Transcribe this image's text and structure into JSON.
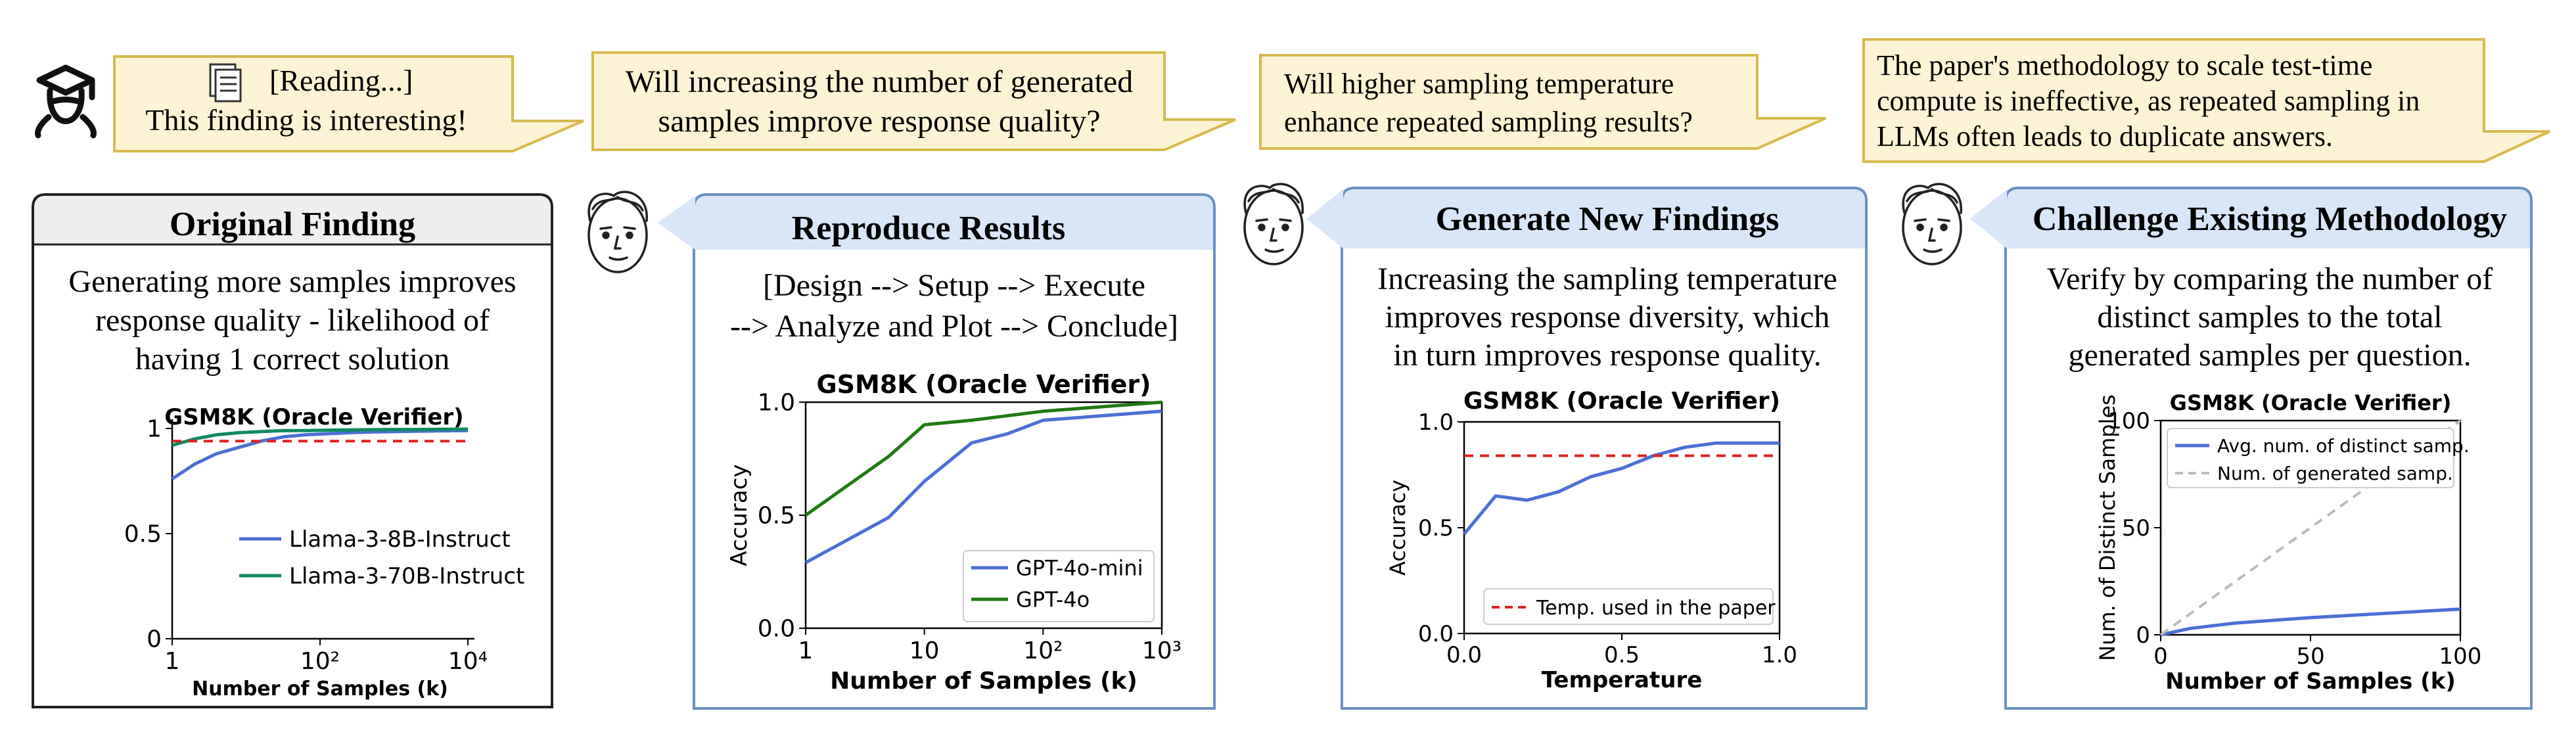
{
  "bubbles": [
    {
      "icon_name": "document-icon",
      "line1": "[Reading...]",
      "line2": "This finding is interesting!"
    },
    {
      "line1": "Will increasing the number of generated",
      "line2": "samples improve response quality?"
    },
    {
      "line1": "Will higher sampling temperature",
      "line2": "enhance repeated sampling results?"
    },
    {
      "line1": "The paper's methodology to scale test-time",
      "line2": "compute is ineffective, as repeated sampling in",
      "line3": "LLMs often leads to duplicate answers."
    }
  ],
  "icons": {
    "user": "graduation-cap-user-icon",
    "agent": "sketched-face-icon"
  },
  "panels": [
    {
      "title": "Original Finding",
      "text": [
        "Generating more samples improves",
        "response quality - likelihood of",
        "having 1 correct solution"
      ]
    },
    {
      "title": "Reproduce Results",
      "text": [
        "[Design --> Setup --> Execute",
        "--> Analyze and Plot --> Conclude]"
      ]
    },
    {
      "title": "Generate New Findings",
      "text": [
        "Increasing the sampling temperature",
        "improves response diversity, which",
        "in turn improves response quality."
      ]
    },
    {
      "title": "Challenge Existing Methodology",
      "text": [
        "Verify by comparing the number of",
        "distinct samples to the total",
        "generated samples per question."
      ]
    }
  ],
  "colors": {
    "bubble_fill": "#fbf3d3",
    "bubble_border": "#d7b94e",
    "panel_border_gray": "#222222",
    "panel_header_gray": "#eeeeee",
    "panel_border_blue": "#6a8fc4",
    "panel_header_blue": "#d9e6f8",
    "blue": "#4a6fd6",
    "green": "#108a5e",
    "dark_green": "#1f7a12",
    "red": "#e02020",
    "gray_dash": "#bbbbbb"
  },
  "chart_data": [
    {
      "type": "line",
      "title": "GSM8K (Oracle Verifier)",
      "xlabel": "Number of Samples (k)",
      "ylabel": "",
      "xscale": "log",
      "xlim": [
        1,
        10000
      ],
      "ylim": [
        0,
        1
      ],
      "xticks": [
        "1",
        "10²",
        "10⁴"
      ],
      "yticks": [
        "0",
        "0.5",
        "1"
      ],
      "legend_position": "lower-right",
      "series": [
        {
          "name": "Llama-3-8B-Instruct",
          "color": "#4a6fd6",
          "x": [
            1,
            2,
            4,
            8,
            16,
            32,
            64,
            128,
            256,
            512,
            1024,
            2048,
            4096,
            10000
          ],
          "y": [
            0.76,
            0.83,
            0.88,
            0.91,
            0.94,
            0.96,
            0.97,
            0.975,
            0.98,
            0.983,
            0.985,
            0.987,
            0.988,
            0.99
          ]
        },
        {
          "name": "Llama-3-70B-Instruct",
          "color": "#108a5e",
          "x": [
            1,
            2,
            4,
            8,
            16,
            32,
            64,
            128,
            256,
            512,
            1024,
            2048,
            4096,
            10000
          ],
          "y": [
            0.92,
            0.95,
            0.97,
            0.98,
            0.985,
            0.99,
            0.99,
            0.992,
            0.993,
            0.994,
            0.995,
            0.995,
            0.996,
            0.997
          ]
        },
        {
          "name": "",
          "style": "dashed",
          "color": "#e02020",
          "x": [
            1,
            10000
          ],
          "y": [
            0.94,
            0.94
          ]
        }
      ]
    },
    {
      "type": "line",
      "title": "GSM8K (Oracle Verifier)",
      "xlabel": "Number of Samples (k)",
      "ylabel": "Accuracy",
      "xscale": "log",
      "xlim": [
        1,
        1000
      ],
      "ylim": [
        0,
        1
      ],
      "xticks": [
        "1",
        "10",
        "10²",
        "10³"
      ],
      "yticks": [
        "0.0",
        "0.5",
        "1.0"
      ],
      "legend_position": "lower-right",
      "series": [
        {
          "name": "GPT-4o-mini",
          "color": "#4a6fd6",
          "x": [
            1,
            5,
            10,
            25,
            50,
            100,
            1000
          ],
          "y": [
            0.29,
            0.49,
            0.65,
            0.82,
            0.86,
            0.92,
            0.96
          ]
        },
        {
          "name": "GPT-4o",
          "color": "#1f7a12",
          "x": [
            1,
            5,
            10,
            25,
            50,
            100,
            1000
          ],
          "y": [
            0.5,
            0.76,
            0.9,
            0.92,
            0.94,
            0.96,
            1.0
          ]
        }
      ]
    },
    {
      "type": "line",
      "title": "GSM8K (Oracle Verifier)",
      "xlabel": "Temperature",
      "ylabel": "Accuracy",
      "xlim": [
        0,
        1
      ],
      "ylim": [
        0,
        1
      ],
      "xticks": [
        "0.0",
        "0.5",
        "1.0"
      ],
      "yticks": [
        "0.0",
        "0.5",
        "1.0"
      ],
      "legend_position": "lower-right",
      "series": [
        {
          "name": "",
          "color": "#4a6fd6",
          "x": [
            0,
            0.1,
            0.2,
            0.3,
            0.4,
            0.5,
            0.6,
            0.7,
            0.8,
            0.9,
            1.0
          ],
          "y": [
            0.47,
            0.65,
            0.63,
            0.67,
            0.74,
            0.78,
            0.84,
            0.88,
            0.9,
            0.9,
            0.9
          ]
        },
        {
          "name": "Temp. used in the paper",
          "style": "dashed",
          "color": "#e02020",
          "x": [
            0,
            1
          ],
          "y": [
            0.84,
            0.84
          ]
        }
      ]
    },
    {
      "type": "line",
      "title": "GSM8K (Oracle Verifier)",
      "xlabel": "Number of Samples (k)",
      "ylabel": "Num. of Distinct Samples",
      "xlim": [
        0,
        100
      ],
      "ylim": [
        0,
        100
      ],
      "xticks": [
        "0",
        "50",
        "100"
      ],
      "yticks": [
        "0",
        "50",
        "100"
      ],
      "legend_position": "upper-left",
      "series": [
        {
          "name": "Avg. num. of distinct samp.",
          "color": "#4a6fd6",
          "x": [
            0,
            10,
            25,
            50,
            75,
            100
          ],
          "y": [
            0,
            3,
            5.5,
            8,
            10,
            12
          ]
        },
        {
          "name": "Num. of generated samp.",
          "style": "dashed",
          "color": "#bbbbbb",
          "x": [
            0,
            100
          ],
          "y": [
            0,
            100
          ]
        }
      ]
    }
  ]
}
